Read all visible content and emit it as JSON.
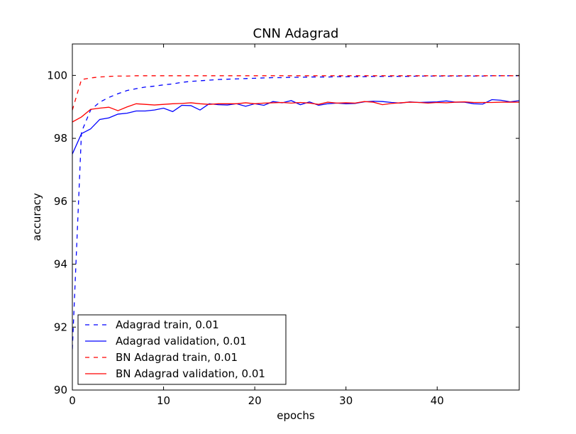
{
  "chart_data": {
    "type": "line",
    "title": "CNN Adagrad",
    "xlabel": "epochs",
    "ylabel": "accuracy",
    "xlim": [
      0,
      49
    ],
    "ylim": [
      90,
      101
    ],
    "xticks": [
      0,
      10,
      20,
      30,
      40
    ],
    "yticks": [
      90,
      92,
      94,
      96,
      98,
      100
    ],
    "grid": false,
    "legend_position": "lower-left",
    "x": [
      0,
      1,
      2,
      3,
      4,
      5,
      6,
      7,
      8,
      9,
      10,
      11,
      12,
      13,
      14,
      15,
      16,
      17,
      18,
      19,
      20,
      21,
      22,
      23,
      24,
      25,
      26,
      27,
      28,
      29,
      30,
      31,
      32,
      33,
      34,
      35,
      36,
      37,
      38,
      39,
      40,
      41,
      42,
      43,
      44,
      45,
      46,
      47,
      48,
      49
    ],
    "series": [
      {
        "name": "Adagrad train, 0.01",
        "color": "#0000ff",
        "dash": "dashed",
        "values": [
          91.3,
          98.2,
          98.9,
          99.15,
          99.3,
          99.42,
          99.52,
          99.58,
          99.63,
          99.66,
          99.7,
          99.73,
          99.78,
          99.81,
          99.83,
          99.85,
          99.87,
          99.88,
          99.89,
          99.9,
          99.91,
          99.92,
          99.93,
          99.93,
          99.94,
          99.94,
          99.95,
          99.95,
          99.95,
          99.96,
          99.96,
          99.96,
          99.96,
          99.97,
          99.97,
          99.97,
          99.97,
          99.97,
          99.98,
          99.98,
          99.98,
          99.98,
          99.98,
          99.98,
          99.98,
          99.98,
          99.99,
          99.99,
          99.99,
          99.99
        ]
      },
      {
        "name": "Adagrad validation, 0.01",
        "color": "#0000ff",
        "dash": "solid",
        "values": [
          97.5,
          98.15,
          98.3,
          98.6,
          98.65,
          98.77,
          98.8,
          98.87,
          98.87,
          98.9,
          98.96,
          98.85,
          99.05,
          99.04,
          98.9,
          99.1,
          99.07,
          99.06,
          99.1,
          99.02,
          99.1,
          99.05,
          99.17,
          99.13,
          99.2,
          99.07,
          99.16,
          99.05,
          99.1,
          99.12,
          99.1,
          99.11,
          99.16,
          99.18,
          99.17,
          99.14,
          99.12,
          99.16,
          99.14,
          99.15,
          99.16,
          99.19,
          99.15,
          99.15,
          99.1,
          99.09,
          99.23,
          99.21,
          99.16,
          99.2
        ]
      },
      {
        "name": "BN Adagrad train, 0.01",
        "color": "#ff0000",
        "dash": "dashed",
        "values": [
          98.9,
          99.87,
          99.92,
          99.95,
          99.97,
          99.98,
          99.98,
          99.99,
          99.99,
          99.99,
          99.99,
          99.99,
          99.99,
          99.99,
          99.99,
          99.99,
          99.99,
          99.99,
          99.99,
          99.99,
          99.99,
          99.99,
          99.99,
          99.99,
          99.99,
          99.99,
          99.99,
          99.99,
          99.99,
          99.99,
          99.99,
          99.99,
          99.99,
          99.99,
          99.99,
          99.99,
          99.99,
          99.99,
          99.99,
          99.99,
          99.99,
          99.99,
          99.99,
          99.99,
          99.99,
          99.99,
          99.99,
          99.99,
          99.99,
          99.99
        ]
      },
      {
        "name": "BN Adagrad validation, 0.01",
        "color": "#ff0000",
        "dash": "solid",
        "values": [
          98.52,
          98.68,
          98.92,
          98.96,
          98.99,
          98.88,
          99.0,
          99.1,
          99.08,
          99.06,
          99.08,
          99.1,
          99.11,
          99.13,
          99.1,
          99.08,
          99.1,
          99.1,
          99.1,
          99.13,
          99.1,
          99.12,
          99.13,
          99.14,
          99.12,
          99.14,
          99.12,
          99.08,
          99.15,
          99.12,
          99.13,
          99.12,
          99.17,
          99.15,
          99.07,
          99.11,
          99.13,
          99.15,
          99.14,
          99.12,
          99.14,
          99.13,
          99.15,
          99.16,
          99.14,
          99.14,
          99.14,
          99.15,
          99.15,
          99.15
        ]
      }
    ]
  }
}
